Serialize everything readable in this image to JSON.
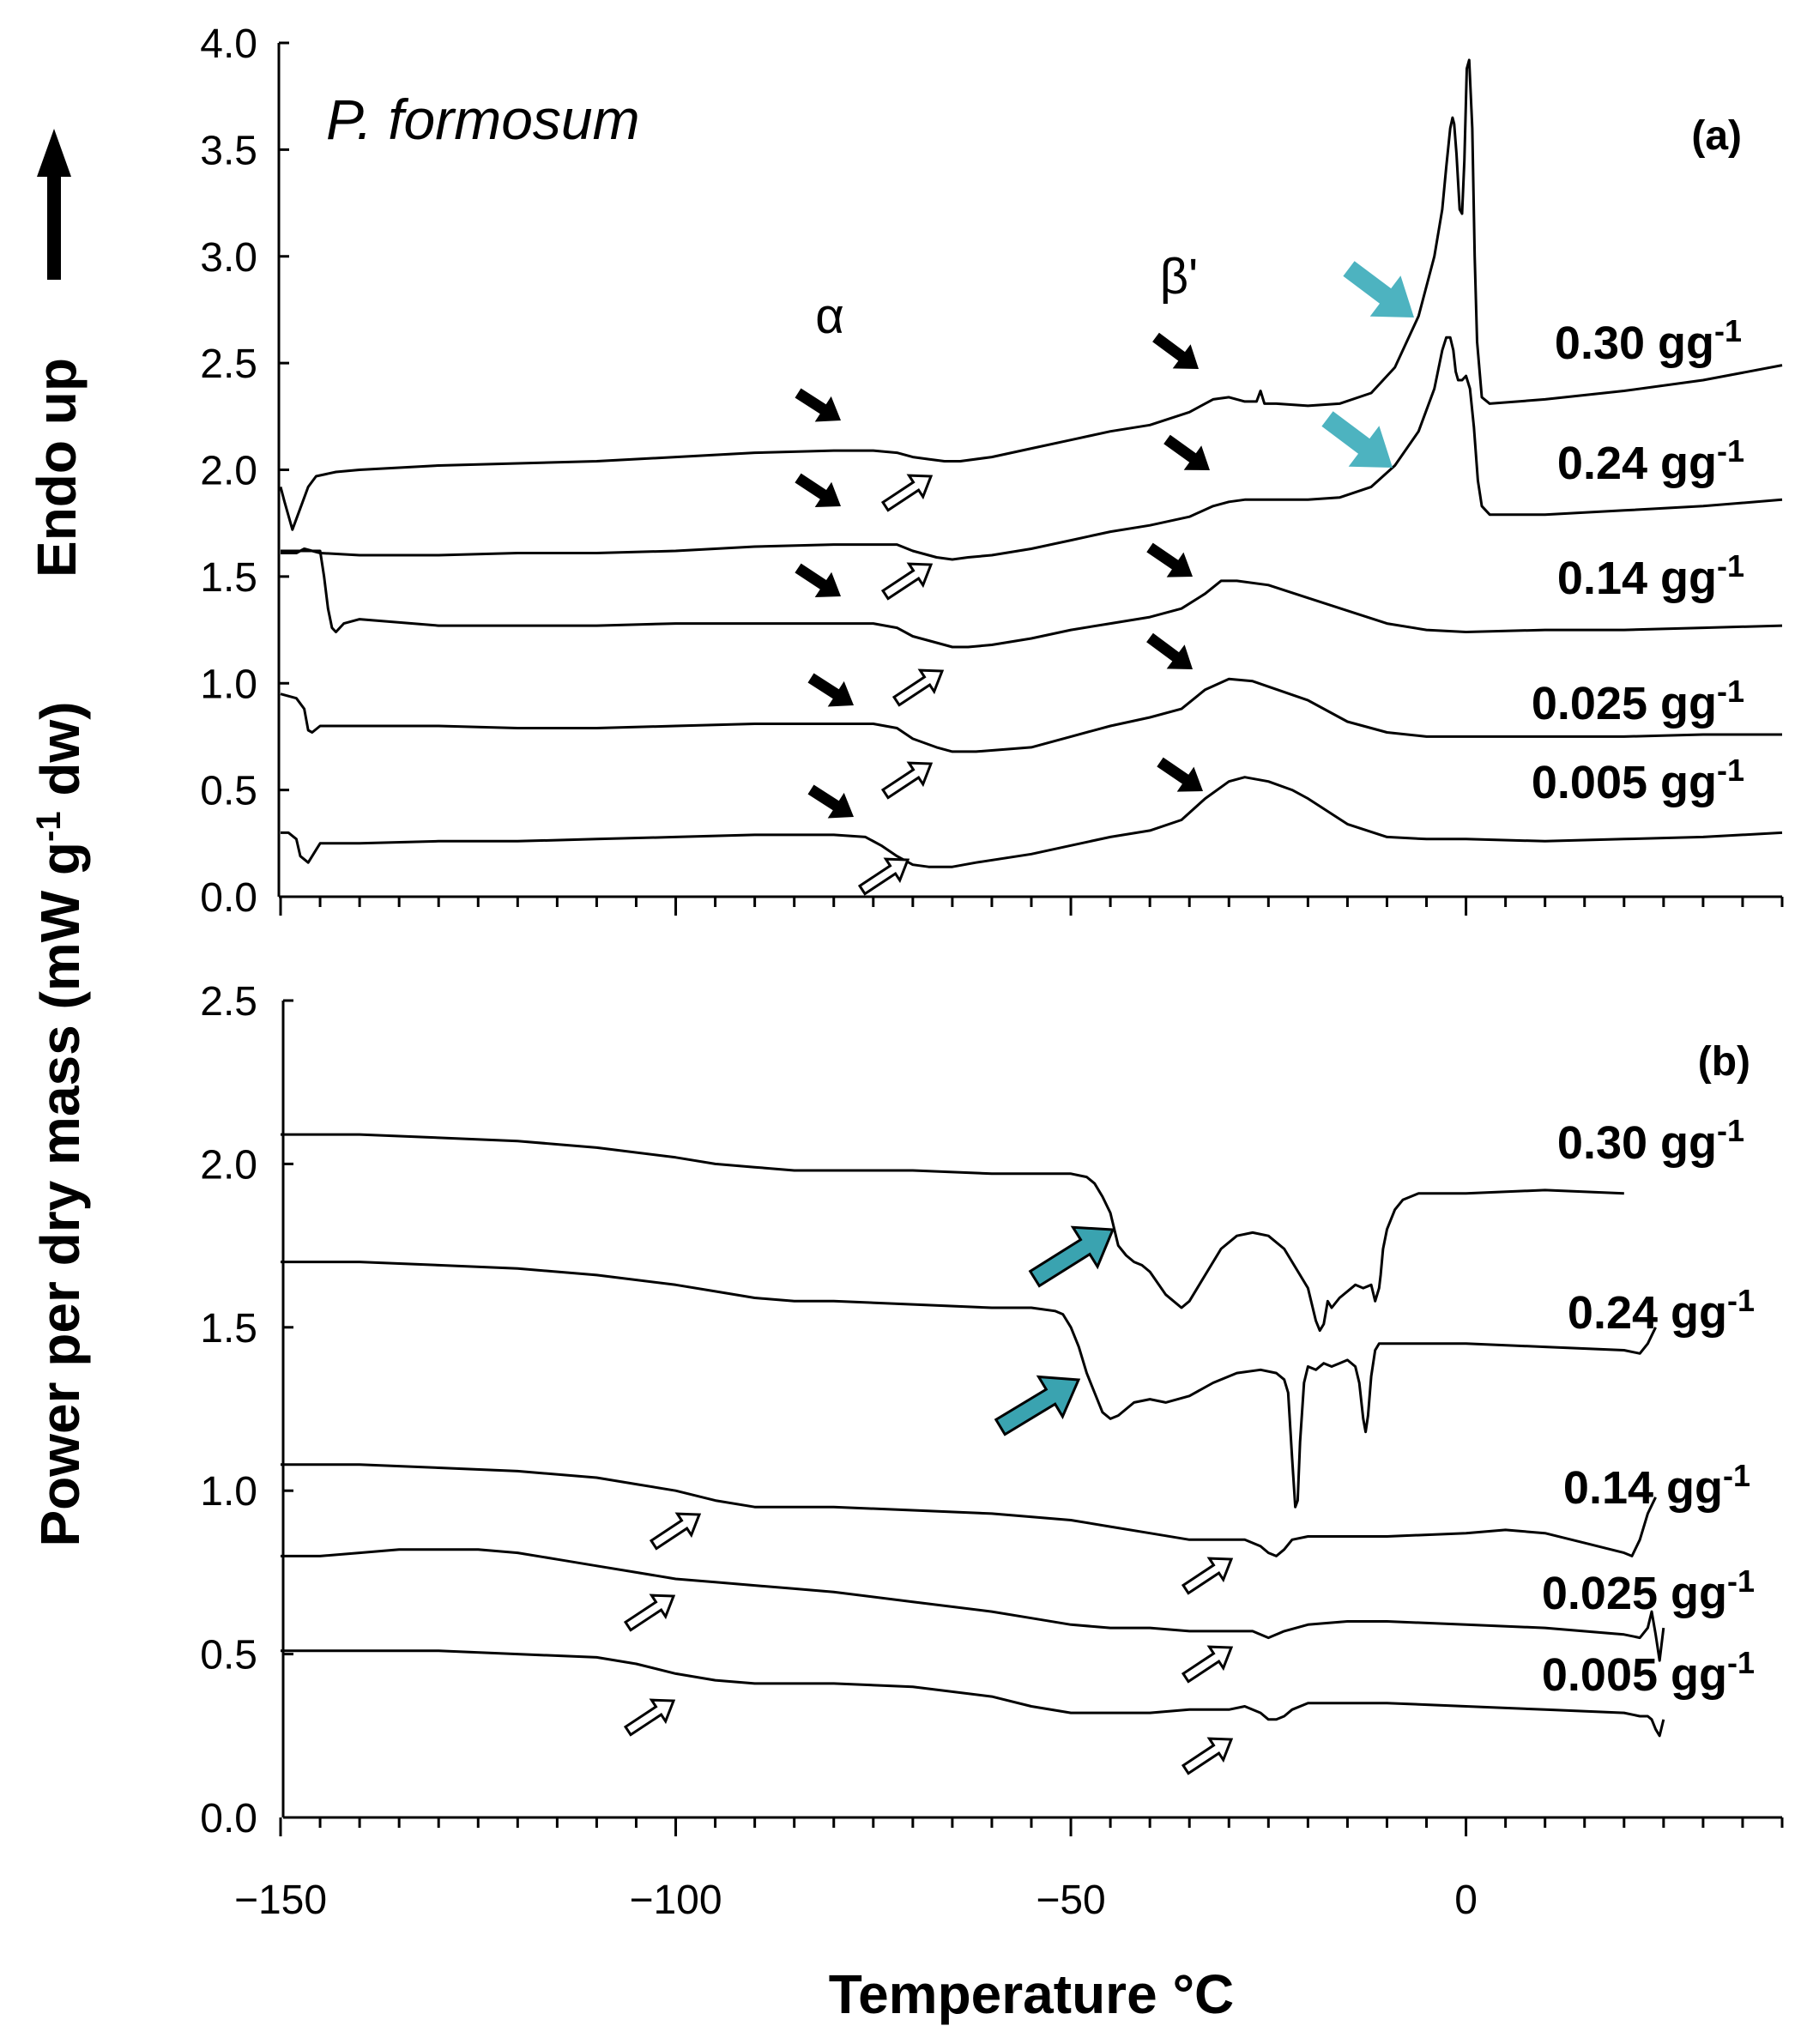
{
  "chart_data": [
    {
      "type": "line",
      "panel_label": "(a)",
      "annotation": "P. formosum",
      "transition_labels": [
        "α",
        "β'"
      ],
      "ylabel_extra": "Endo up",
      "xlim": [
        -150,
        40
      ],
      "ylim": [
        0.0,
        4.0
      ],
      "y_ticks": [
        "0.0",
        "0.5",
        "1.0",
        "1.5",
        "2.0",
        "2.5",
        "3.0",
        "3.5",
        "4.0"
      ],
      "x_major_ticks": [
        -150,
        -100,
        -50,
        0
      ],
      "x_minor_step": 5,
      "grid": false,
      "series": [
        {
          "name": "0.30 gg-1",
          "name_main": "0.30 gg",
          "name_sup": "-1",
          "x": [
            -150,
            -149.5,
            -148.5,
            -147.5,
            -146.5,
            -145.5,
            -143,
            -140,
            -130,
            -120,
            -110,
            -100,
            -90,
            -80,
            -75,
            -72,
            -70,
            -68,
            -66,
            -64,
            -60,
            -55,
            -50,
            -45,
            -40,
            -35,
            -32,
            -30,
            -28,
            -26.5,
            -26,
            -25.5,
            -24,
            -20,
            -16,
            -12,
            -9,
            -6,
            -4,
            -3,
            -2.5,
            -2,
            -1.7,
            -1.5,
            -1.2,
            -0.8,
            -0.5,
            -0.2,
            0.1,
            0.4,
            0.8,
            1.1,
            1.4,
            2,
            3,
            10,
            20,
            30,
            40
          ],
          "y": [
            1.92,
            1.85,
            1.72,
            1.82,
            1.92,
            1.97,
            1.99,
            2.0,
            2.02,
            2.03,
            2.04,
            2.06,
            2.08,
            2.09,
            2.09,
            2.08,
            2.06,
            2.05,
            2.04,
            2.04,
            2.06,
            2.1,
            2.14,
            2.18,
            2.21,
            2.27,
            2.33,
            2.34,
            2.32,
            2.32,
            2.37,
            2.31,
            2.31,
            2.3,
            2.31,
            2.36,
            2.48,
            2.72,
            3.0,
            3.22,
            3.42,
            3.6,
            3.65,
            3.62,
            3.48,
            3.22,
            3.2,
            3.45,
            3.88,
            3.92,
            3.6,
            3.0,
            2.6,
            2.34,
            2.31,
            2.33,
            2.37,
            2.42,
            2.49
          ]
        },
        {
          "name": "0.24 gg-1",
          "name_main": "0.24 gg",
          "name_sup": "-1",
          "x": [
            -150,
            -148,
            -147,
            -146,
            -145,
            -140,
            -130,
            -120,
            -110,
            -100,
            -90,
            -80,
            -75,
            -72,
            -70,
            -67,
            -65,
            -63,
            -60,
            -55,
            -50,
            -45,
            -40,
            -35,
            -32,
            -30,
            -28,
            -25,
            -20,
            -16,
            -12,
            -9,
            -6,
            -4,
            -3,
            -2.5,
            -2,
            -1.6,
            -1.3,
            -1,
            -0.5,
            0,
            0.5,
            1,
            1.5,
            2,
            3,
            10,
            20,
            30,
            40
          ],
          "y": [
            1.61,
            1.61,
            1.63,
            1.62,
            1.61,
            1.6,
            1.6,
            1.61,
            1.61,
            1.62,
            1.64,
            1.65,
            1.65,
            1.65,
            1.62,
            1.59,
            1.58,
            1.59,
            1.6,
            1.63,
            1.67,
            1.71,
            1.74,
            1.78,
            1.83,
            1.85,
            1.86,
            1.86,
            1.86,
            1.87,
            1.92,
            2.02,
            2.18,
            2.38,
            2.56,
            2.62,
            2.62,
            2.56,
            2.46,
            2.42,
            2.42,
            2.44,
            2.38,
            2.2,
            1.95,
            1.83,
            1.79,
            1.79,
            1.81,
            1.83,
            1.86
          ]
        },
        {
          "name": "0.14 gg-1",
          "name_main": "0.14 gg",
          "name_sup": "-1",
          "x": [
            -150,
            -146,
            -145,
            -144.5,
            -144,
            -143.5,
            -143,
            -142,
            -140,
            -130,
            -120,
            -110,
            -100,
            -90,
            -80,
            -75,
            -72,
            -70,
            -67,
            -65,
            -63,
            -60,
            -55,
            -50,
            -45,
            -40,
            -36,
            -33,
            -31,
            -29,
            -25,
            -20,
            -15,
            -10,
            -5,
            0,
            10,
            20,
            30,
            40
          ],
          "y": [
            1.62,
            1.62,
            1.62,
            1.5,
            1.35,
            1.26,
            1.24,
            1.28,
            1.3,
            1.27,
            1.27,
            1.27,
            1.28,
            1.28,
            1.28,
            1.28,
            1.26,
            1.22,
            1.19,
            1.17,
            1.17,
            1.18,
            1.21,
            1.25,
            1.28,
            1.31,
            1.35,
            1.42,
            1.48,
            1.48,
            1.46,
            1.4,
            1.34,
            1.28,
            1.25,
            1.24,
            1.25,
            1.25,
            1.26,
            1.27
          ]
        },
        {
          "name": "0.025 gg-1",
          "name_main": "0.025 gg",
          "name_sup": "-1",
          "x": [
            -150,
            -148,
            -147,
            -146.5,
            -146,
            -145,
            -140,
            -130,
            -120,
            -110,
            -100,
            -90,
            -80,
            -75,
            -72,
            -70,
            -67,
            -65,
            -62,
            -55,
            -50,
            -45,
            -40,
            -36,
            -33,
            -30,
            -27,
            -20,
            -15,
            -10,
            -5,
            0,
            10,
            20,
            30,
            40
          ],
          "y": [
            0.95,
            0.93,
            0.88,
            0.78,
            0.77,
            0.8,
            0.8,
            0.8,
            0.79,
            0.79,
            0.8,
            0.81,
            0.81,
            0.81,
            0.79,
            0.74,
            0.7,
            0.68,
            0.68,
            0.7,
            0.75,
            0.8,
            0.84,
            0.88,
            0.97,
            1.02,
            1.01,
            0.92,
            0.82,
            0.77,
            0.75,
            0.75,
            0.75,
            0.75,
            0.76,
            0.76
          ]
        },
        {
          "name": "0.005 gg-1",
          "name_main": "0.005 gg",
          "name_sup": "-1",
          "x": [
            -150,
            -149,
            -148,
            -147.5,
            -146.5,
            -145.5,
            -145,
            -140,
            -130,
            -120,
            -110,
            -100,
            -90,
            -80,
            -76,
            -74,
            -72,
            -70,
            -68,
            -65,
            -62,
            -55,
            -50,
            -45,
            -40,
            -36,
            -33,
            -30,
            -28,
            -25,
            -22,
            -20,
            -15,
            -10,
            -5,
            0,
            10,
            20,
            30,
            40
          ],
          "y": [
            0.3,
            0.3,
            0.27,
            0.19,
            0.16,
            0.22,
            0.25,
            0.25,
            0.26,
            0.26,
            0.27,
            0.28,
            0.29,
            0.29,
            0.28,
            0.24,
            0.19,
            0.15,
            0.14,
            0.14,
            0.16,
            0.2,
            0.24,
            0.28,
            0.31,
            0.36,
            0.46,
            0.54,
            0.56,
            0.54,
            0.5,
            0.46,
            0.34,
            0.28,
            0.27,
            0.27,
            0.26,
            0.27,
            0.28,
            0.3
          ]
        }
      ]
    },
    {
      "type": "line",
      "panel_label": "(b)",
      "xlabel": "Temperature °C",
      "ylabel": "Power per dry mass (mW g-1 dw)",
      "ylabel_parts": [
        "Power per dry mass (mW g",
        "-1",
        " dw)"
      ],
      "xlim": [
        -150,
        40
      ],
      "ylim": [
        0.0,
        2.5
      ],
      "y_ticks": [
        "0.0",
        "0.5",
        "1.0",
        "1.5",
        "2.0",
        "2.5"
      ],
      "x_tick_labels": [
        "−150",
        "−100",
        "−50",
        "0"
      ],
      "x_major_ticks": [
        -150,
        -100,
        -50,
        0
      ],
      "x_minor_step": 5,
      "grid": false,
      "series": [
        {
          "name": "0.30 gg-1",
          "name_main": "0.30 gg",
          "name_sup": "-1",
          "x": [
            -150,
            -140,
            -130,
            -120,
            -110,
            -100,
            -95,
            -90,
            -85,
            -80,
            -70,
            -60,
            -55,
            -50,
            -48,
            -47,
            -46,
            -45,
            -44,
            -43,
            -42,
            -41,
            -40,
            -38,
            -36,
            -35,
            -33,
            -31,
            -29,
            -27,
            -25,
            -23,
            -21,
            -20,
            -19,
            -18.5,
            -18,
            -17.5,
            -17,
            -16,
            -14,
            -13,
            -12,
            -11.5,
            -11,
            -10.8,
            -10.5,
            -10,
            -9,
            -8,
            -7,
            -6,
            -5,
            0,
            10,
            20
          ],
          "y": [
            2.09,
            2.09,
            2.08,
            2.07,
            2.05,
            2.02,
            2.0,
            1.99,
            1.98,
            1.98,
            1.98,
            1.97,
            1.97,
            1.97,
            1.96,
            1.94,
            1.9,
            1.85,
            1.75,
            1.72,
            1.7,
            1.69,
            1.67,
            1.6,
            1.56,
            1.58,
            1.66,
            1.74,
            1.78,
            1.79,
            1.78,
            1.74,
            1.66,
            1.62,
            1.52,
            1.49,
            1.51,
            1.58,
            1.56,
            1.59,
            1.63,
            1.62,
            1.63,
            1.58,
            1.62,
            1.66,
            1.74,
            1.8,
            1.86,
            1.89,
            1.9,
            1.91,
            1.91,
            1.91,
            1.92,
            1.91
          ]
        },
        {
          "name": "0.24 gg-1",
          "name_main": "0.24 gg",
          "name_sup": "-1",
          "x": [
            -150,
            -140,
            -130,
            -120,
            -110,
            -100,
            -95,
            -90,
            -85,
            -80,
            -70,
            -60,
            -55,
            -52,
            -51,
            -50,
            -49,
            -48,
            -47,
            -46,
            -45,
            -44,
            -42,
            -40,
            -38,
            -35,
            -32,
            -29,
            -26,
            -24,
            -23,
            -22.5,
            -22,
            -21.6,
            -21.3,
            -21,
            -20.5,
            -20,
            -19,
            -18,
            -17,
            -16,
            -15,
            -14,
            -13.5,
            -13,
            -12.7,
            -12.4,
            -12,
            -11.5,
            -11,
            -10,
            -5,
            0,
            10,
            20,
            22,
            23,
            24
          ],
          "y": [
            1.7,
            1.7,
            1.69,
            1.68,
            1.66,
            1.63,
            1.61,
            1.59,
            1.58,
            1.58,
            1.57,
            1.56,
            1.56,
            1.55,
            1.54,
            1.5,
            1.44,
            1.36,
            1.3,
            1.24,
            1.22,
            1.23,
            1.27,
            1.28,
            1.27,
            1.29,
            1.33,
            1.36,
            1.37,
            1.36,
            1.34,
            1.3,
            1.1,
            0.95,
            0.97,
            1.15,
            1.33,
            1.38,
            1.37,
            1.39,
            1.38,
            1.39,
            1.4,
            1.38,
            1.33,
            1.22,
            1.18,
            1.23,
            1.35,
            1.43,
            1.45,
            1.45,
            1.45,
            1.45,
            1.44,
            1.43,
            1.42,
            1.45,
            1.5
          ]
        },
        {
          "name": "0.14 gg-1",
          "name_main": "0.14 gg",
          "name_sup": "-1",
          "x": [
            -150,
            -140,
            -130,
            -120,
            -110,
            -105,
            -100,
            -95,
            -90,
            -80,
            -70,
            -60,
            -50,
            -45,
            -40,
            -35,
            -30,
            -28,
            -26,
            -25,
            -24,
            -23,
            -22,
            -20,
            -15,
            -10,
            0,
            5,
            10,
            15,
            20,
            21,
            22,
            23,
            24
          ],
          "y": [
            1.08,
            1.08,
            1.07,
            1.06,
            1.04,
            1.02,
            1.0,
            0.97,
            0.95,
            0.95,
            0.94,
            0.93,
            0.91,
            0.89,
            0.87,
            0.85,
            0.85,
            0.85,
            0.83,
            0.81,
            0.8,
            0.82,
            0.85,
            0.86,
            0.86,
            0.86,
            0.87,
            0.88,
            0.87,
            0.84,
            0.81,
            0.8,
            0.85,
            0.93,
            0.98
          ]
        },
        {
          "name": "0.025 gg-1",
          "name_main": "0.025 gg",
          "name_sup": "-1",
          "x": [
            -150,
            -145,
            -140,
            -135,
            -130,
            -125,
            -120,
            -115,
            -110,
            -105,
            -100,
            -95,
            -90,
            -85,
            -80,
            -70,
            -60,
            -55,
            -50,
            -45,
            -40,
            -35,
            -30,
            -27,
            -26,
            -25,
            -24,
            -23,
            -20,
            -15,
            -10,
            0,
            10,
            20,
            22,
            23,
            23.5,
            24,
            24.5,
            25
          ],
          "y": [
            0.8,
            0.8,
            0.81,
            0.82,
            0.82,
            0.82,
            0.81,
            0.79,
            0.77,
            0.75,
            0.73,
            0.72,
            0.71,
            0.7,
            0.69,
            0.66,
            0.63,
            0.61,
            0.59,
            0.58,
            0.58,
            0.57,
            0.57,
            0.57,
            0.56,
            0.55,
            0.56,
            0.57,
            0.59,
            0.6,
            0.6,
            0.59,
            0.58,
            0.56,
            0.55,
            0.58,
            0.63,
            0.56,
            0.48,
            0.58
          ]
        },
        {
          "name": "0.005 gg-1",
          "name_main": "0.005 gg",
          "name_sup": "-1",
          "x": [
            -150,
            -140,
            -130,
            -120,
            -110,
            -105,
            -100,
            -95,
            -90,
            -80,
            -70,
            -60,
            -55,
            -50,
            -45,
            -40,
            -35,
            -30,
            -28,
            -26,
            -25,
            -24,
            -23,
            -22,
            -20,
            -15,
            -10,
            0,
            10,
            20,
            22,
            23,
            23.5,
            24,
            24.5,
            25
          ],
          "y": [
            0.51,
            0.51,
            0.51,
            0.5,
            0.49,
            0.47,
            0.44,
            0.42,
            0.41,
            0.41,
            0.4,
            0.37,
            0.34,
            0.32,
            0.32,
            0.32,
            0.33,
            0.33,
            0.34,
            0.32,
            0.3,
            0.3,
            0.31,
            0.33,
            0.35,
            0.35,
            0.35,
            0.34,
            0.33,
            0.32,
            0.31,
            0.31,
            0.3,
            0.27,
            0.25,
            0.3
          ]
        }
      ]
    }
  ]
}
